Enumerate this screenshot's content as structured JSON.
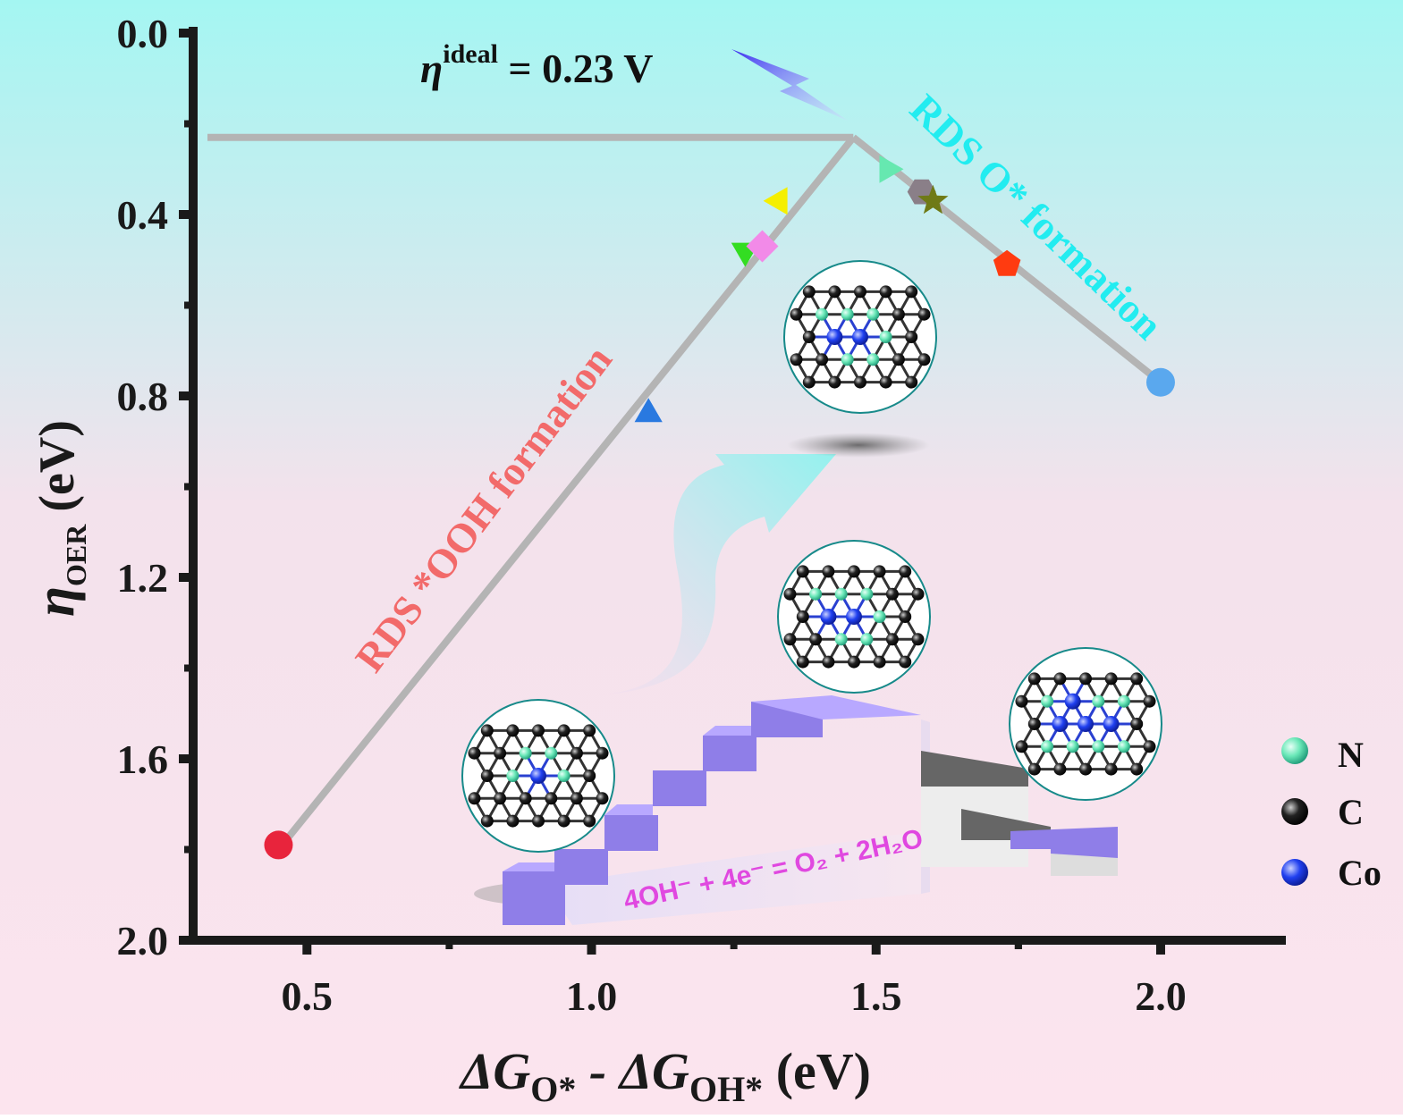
{
  "chart_data": {
    "type": "scatter",
    "xlabel": "ΔG",
    "xlabel_sub1": "O*",
    "xlabel_mid": " - ΔG",
    "xlabel_sub2": "OH*",
    "xlabel_unit": " (eV)",
    "ylabel": "η",
    "ylabel_sub": "OER",
    "ylabel_unit": " (eV)",
    "xlim": [
      0.3,
      2.22
    ],
    "ylim": [
      0.0,
      2.0
    ],
    "y_inverted": true,
    "x_ticks": [
      0.5,
      1.0,
      1.5,
      2.0
    ],
    "x_tick_labels": [
      "0.5",
      "1.0",
      "1.5",
      "2.0"
    ],
    "y_ticks": [
      0.0,
      0.4,
      0.8,
      1.2,
      1.6,
      2.0
    ],
    "y_tick_labels": [
      "0.0",
      "0.4",
      "0.8",
      "1.2",
      "1.6",
      "2.0"
    ],
    "volcano": {
      "ideal_eta": 0.23,
      "peak_x": 1.46,
      "left_line": [
        [
          0.45,
          1.8
        ],
        [
          1.46,
          0.23
        ]
      ],
      "right_line": [
        [
          1.46,
          0.23
        ],
        [
          2.0,
          0.77
        ]
      ]
    },
    "annotations": {
      "ideal_eta": "η",
      "ideal_sup": "ideal",
      "ideal_value": " = 0.23 V",
      "left_branch": "RDS *OOH formation",
      "right_branch": "RDS O* formation",
      "equation": "4OH⁻ + 4e⁻ = O₂ + 2H₂O"
    },
    "points": [
      {
        "x": 0.45,
        "y": 1.79,
        "marker": "circle",
        "color": "#e8243c"
      },
      {
        "x": 1.1,
        "y": 0.84,
        "marker": "triangle-up",
        "color": "#2979e0"
      },
      {
        "x": 1.27,
        "y": 0.48,
        "marker": "triangle-down",
        "color": "#33dd22"
      },
      {
        "x": 1.3,
        "y": 0.47,
        "marker": "diamond",
        "color": "#f28ae8"
      },
      {
        "x": 1.33,
        "y": 0.37,
        "marker": "triangle-left",
        "color": "#f5ef00"
      },
      {
        "x": 1.52,
        "y": 0.3,
        "marker": "triangle-right",
        "color": "#66e8b0"
      },
      {
        "x": 1.58,
        "y": 0.35,
        "marker": "hexagon",
        "color": "#8a7f88"
      },
      {
        "x": 1.6,
        "y": 0.37,
        "marker": "star",
        "color": "#6f7a16"
      },
      {
        "x": 1.73,
        "y": 0.51,
        "marker": "pentagon",
        "color": "#ff3b10"
      },
      {
        "x": 2.0,
        "y": 0.77,
        "marker": "circle",
        "color": "#5aa8ee"
      }
    ],
    "legend": {
      "position": "bottom-right",
      "items": [
        {
          "label": "N",
          "color": "#6ae8b8"
        },
        {
          "label": "C",
          "color": "#111111"
        },
        {
          "label": "Co",
          "color": "#1530e0"
        }
      ]
    },
    "colors": {
      "line": "#b4b4b4",
      "axis": "#1a1a1a",
      "left_branch_text": "#f26a6a",
      "right_branch_text": "#22ecf0",
      "equation_text": "#e048e0",
      "stair": "#9d8cf0"
    }
  }
}
